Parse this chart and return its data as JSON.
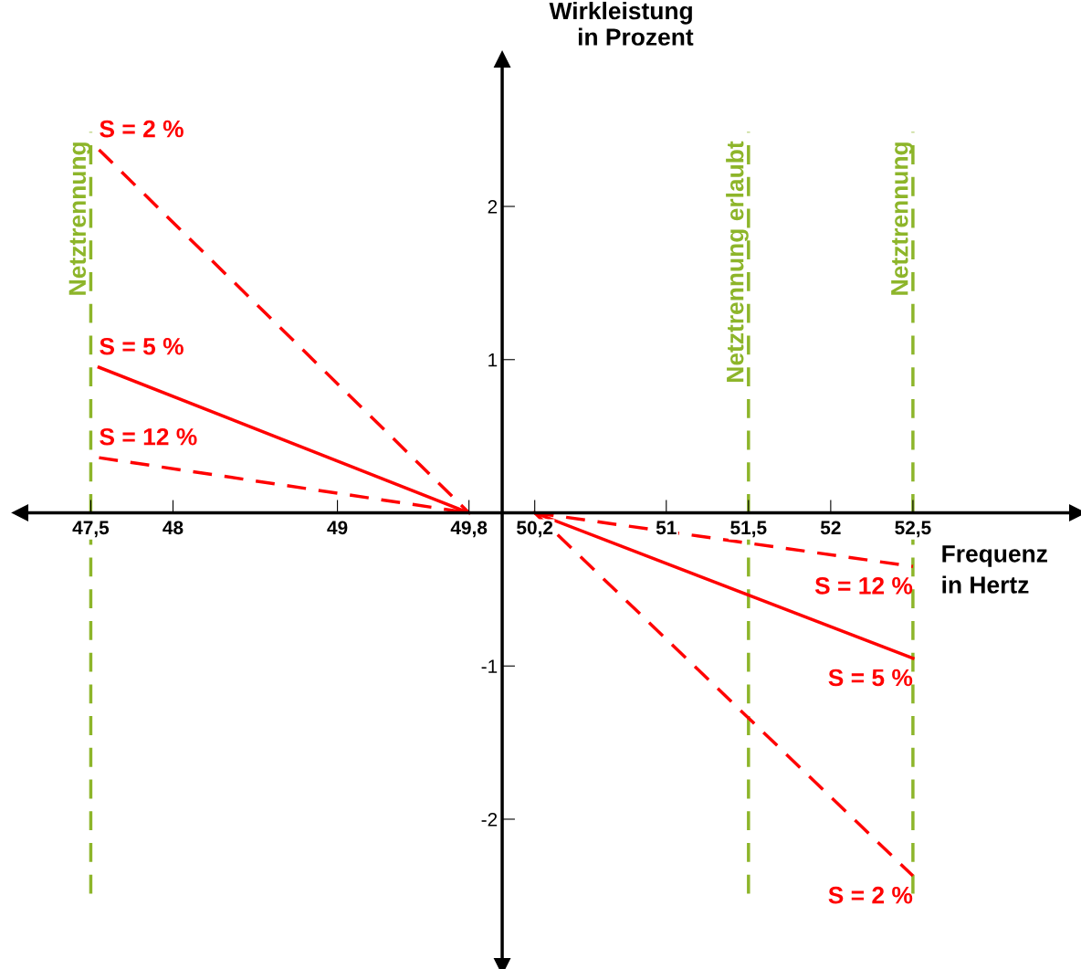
{
  "chart_data": {
    "type": "line",
    "xlabel": "Frequenz\nin Hertz",
    "ylabel": "Wirkleistung\nin Prozent",
    "series": [
      {
        "name": "S = 2 %",
        "color": "#ff0000",
        "line_style": "dashed",
        "x": [
          47.55,
          49.8
        ],
        "values": [
          2.37,
          0
        ]
      },
      {
        "name": "S = 5 %",
        "color": "#ff0000",
        "line_style": "solid",
        "x": [
          47.55,
          49.8
        ],
        "values": [
          0.95,
          0
        ]
      },
      {
        "name": "S = 12 %",
        "color": "#ff0000",
        "line_style": "dashed",
        "x": [
          47.55,
          49.8
        ],
        "values": [
          0.36,
          0
        ]
      },
      {
        "name": "S = 12 %",
        "color": "#ff0000",
        "line_style": "dashed",
        "x": [
          50.2,
          52.5
        ],
        "values": [
          0,
          -0.35
        ]
      },
      {
        "name": "S = 5 %",
        "color": "#ff0000",
        "line_style": "solid",
        "x": [
          50.2,
          52.5
        ],
        "values": [
          0,
          -0.95
        ]
      },
      {
        "name": "S = 2 %",
        "color": "#ff0000",
        "line_style": "dashed",
        "x": [
          50.2,
          52.5
        ],
        "values": [
          0,
          -2.37
        ]
      }
    ],
    "xlim": [
      47.07,
      53.5
    ],
    "ylim": [
      -2.96,
      2.96
    ],
    "xticks": [
      {
        "value": 47.5,
        "label": "47,5"
      },
      48,
      49,
      {
        "value": 49.8,
        "label": "49,8"
      },
      {
        "value": 50.2,
        "label": "50,2"
      },
      51,
      {
        "value": 51.5,
        "label": "51,5"
      },
      52,
      {
        "value": 52.5,
        "label": "52,5"
      }
    ],
    "yticks": [
      -2,
      -1,
      1,
      2
    ],
    "ref_lines": [
      {
        "axis": "x",
        "value": 47.5,
        "label": "Netztrennung",
        "color": "#8db52a",
        "line_style": "dashed"
      },
      {
        "axis": "x",
        "value": 51.5,
        "label": "Netztrennung erlaubt",
        "color": "#8db52a",
        "line_style": "dashed"
      },
      {
        "axis": "x",
        "value": 52.5,
        "label": "Netztrennung",
        "color": "#8db52a",
        "line_style": "dashed"
      }
    ],
    "grid": false,
    "legend": false,
    "marker": "none"
  }
}
